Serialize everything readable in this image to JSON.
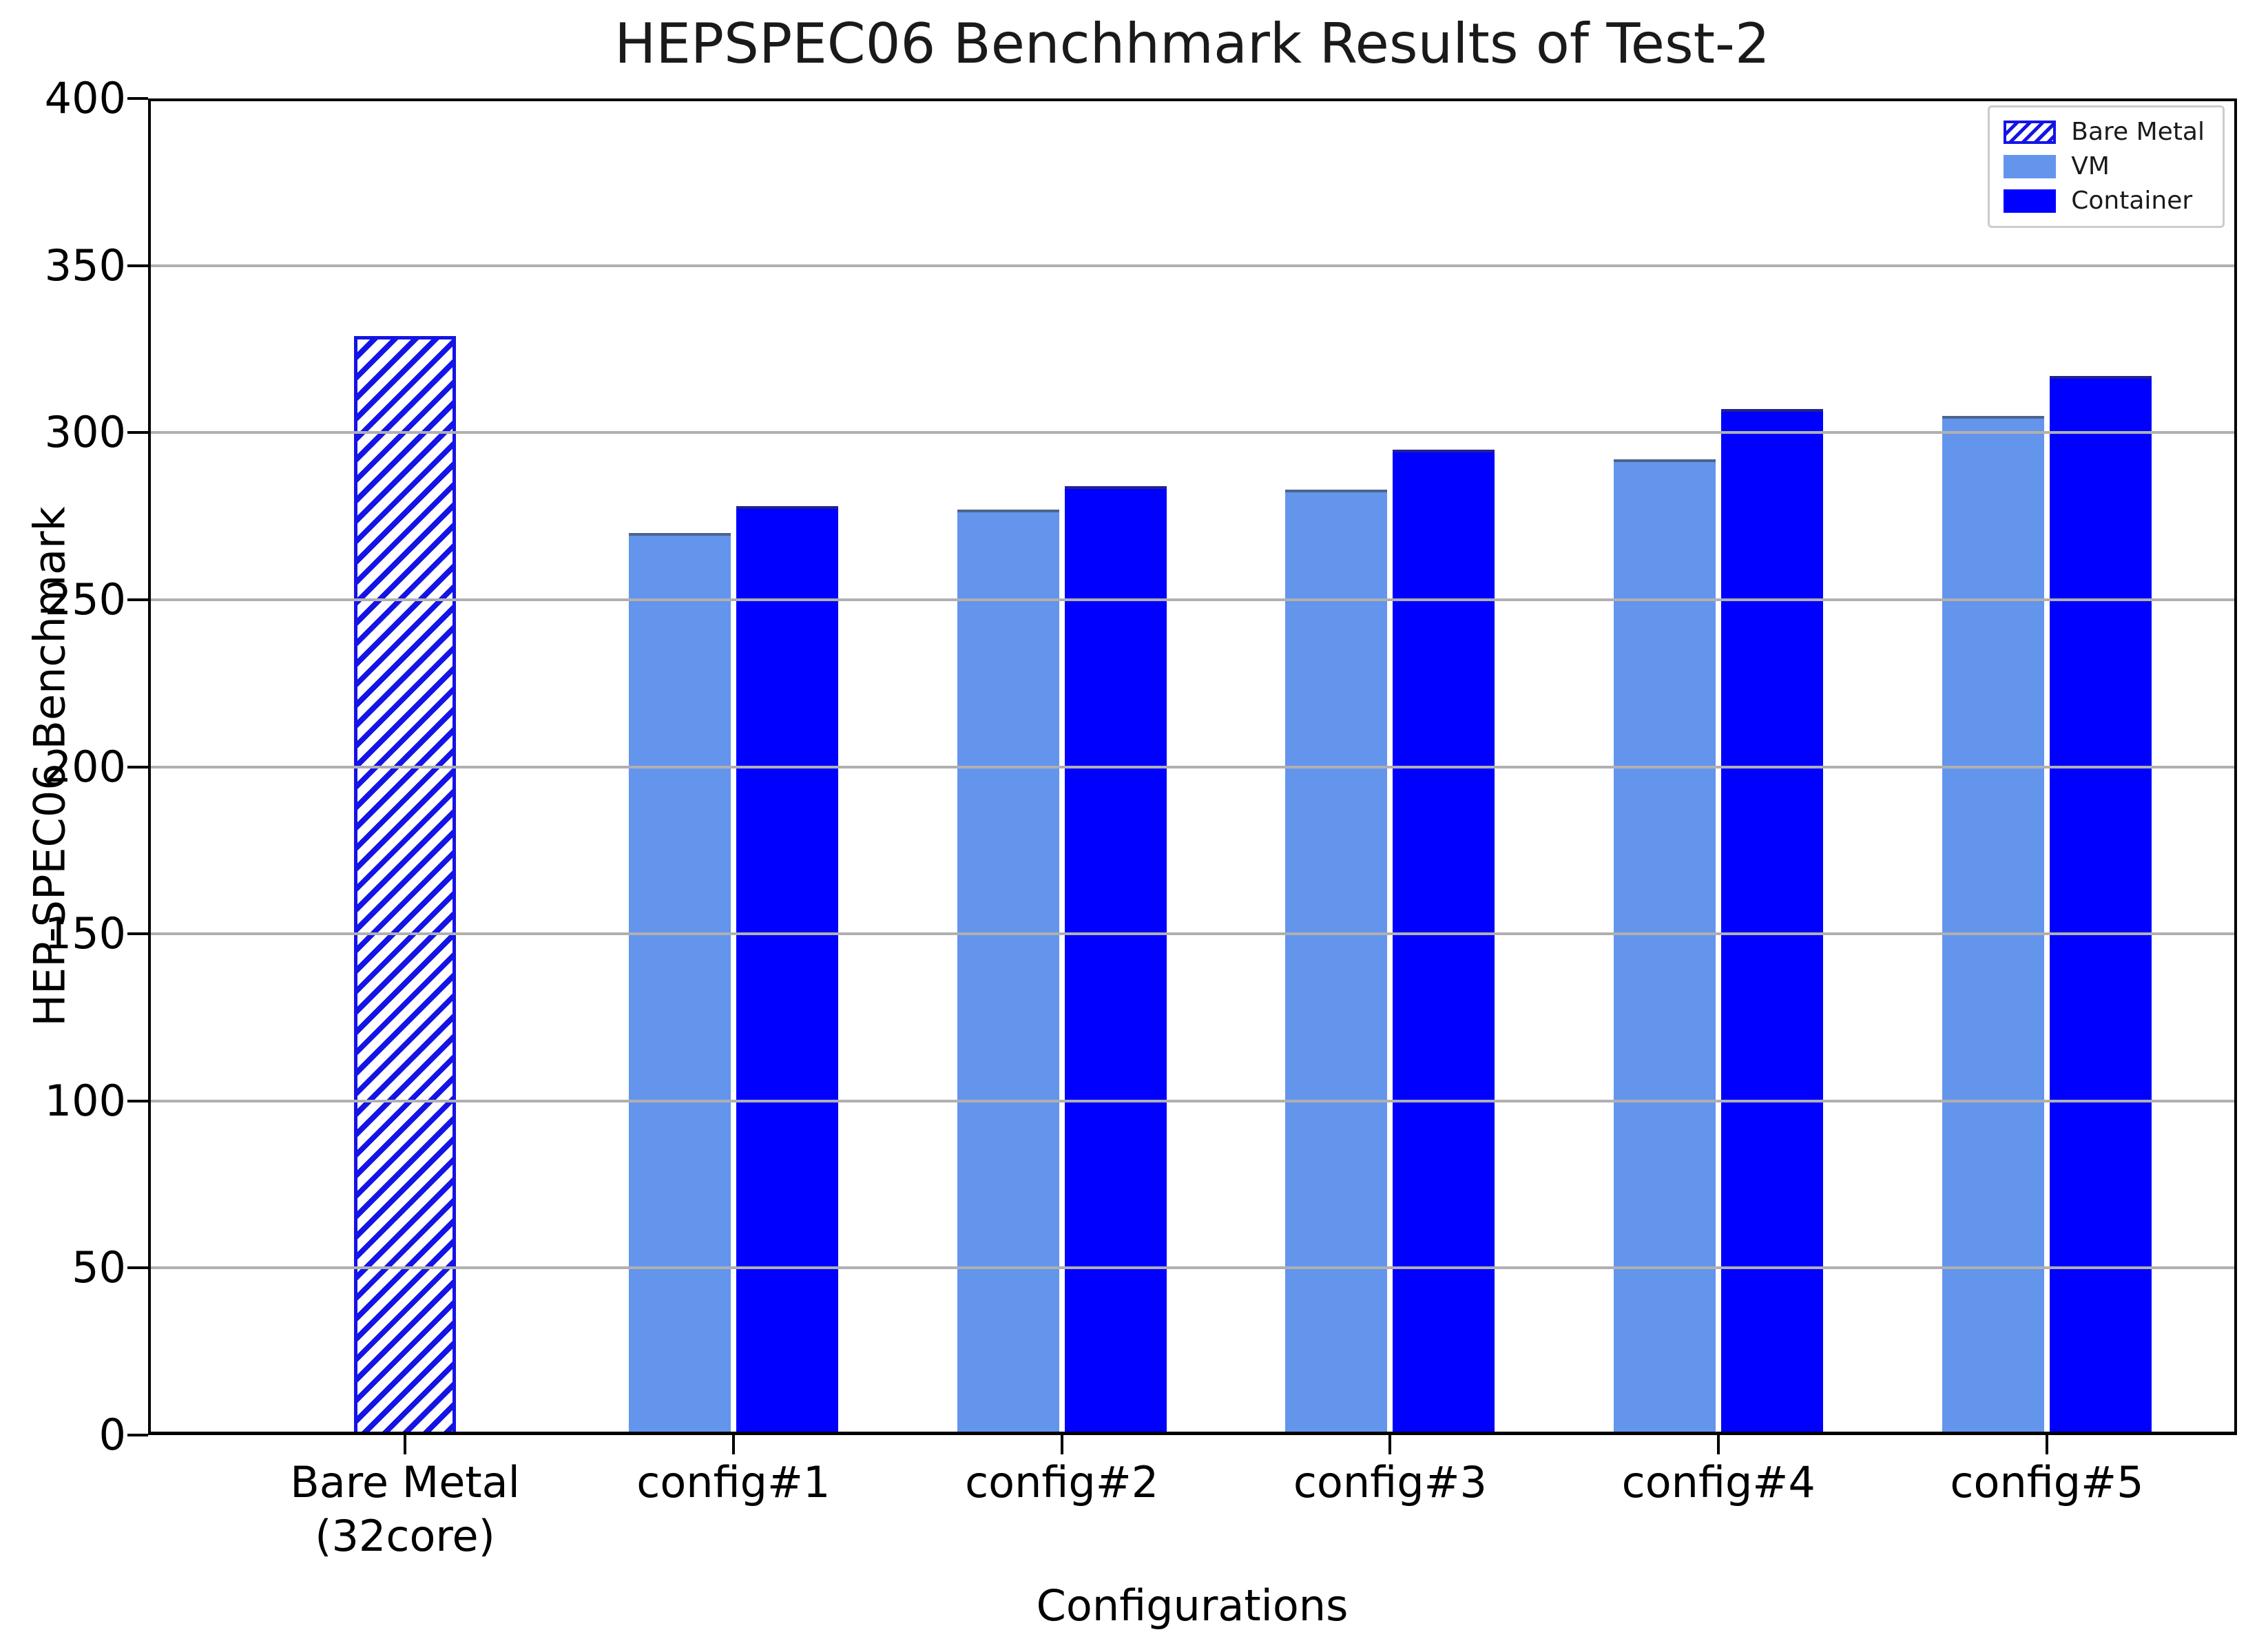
{
  "chart_data": {
    "type": "bar",
    "title": "HEPSPEC06 Benchhmark Results of Test-2",
    "xlabel": "Configurations",
    "ylabel": "HEP-SPEC06 Benchmark",
    "ylim": [
      0,
      400
    ],
    "yticks": [
      0,
      50,
      100,
      150,
      200,
      250,
      300,
      350,
      400
    ],
    "grid": true,
    "grid_color": "#b0b0b0",
    "legend": {
      "position": "upper right",
      "items": [
        {
          "label": "Bare Metal",
          "style": "hatched",
          "color": "#1414e6"
        },
        {
          "label": "VM",
          "style": "solid",
          "color": "#6495ed"
        },
        {
          "label": "Container",
          "style": "solid",
          "color": "#0000ff"
        }
      ]
    },
    "categories": [
      "Bare Metal\n(32core)",
      "config#1",
      "config#2",
      "config#3",
      "config#4",
      "config#5"
    ],
    "series": [
      {
        "name": "Bare Metal",
        "style": "hatched",
        "hatch": "///",
        "color": "#1414e6",
        "values": [
          329,
          null,
          null,
          null,
          null,
          null
        ]
      },
      {
        "name": "VM",
        "style": "solid",
        "color": "#6495ed",
        "values": [
          null,
          270,
          277,
          283,
          292,
          305
        ]
      },
      {
        "name": "Container",
        "style": "solid",
        "color": "#0000ff",
        "values": [
          null,
          278,
          284,
          295,
          307,
          317
        ]
      }
    ]
  }
}
